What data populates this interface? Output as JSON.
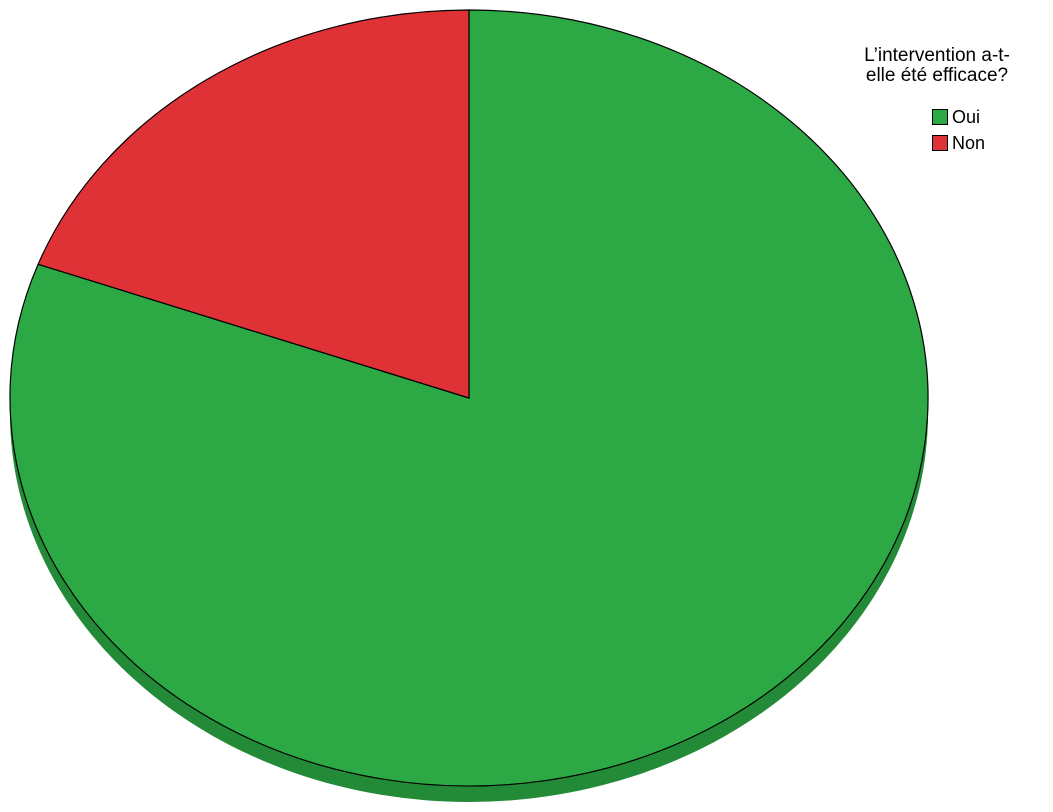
{
  "chart_data": {
    "type": "pie",
    "title": "",
    "legend_title": "L’intervention a-t-elle été efficace?",
    "legend_position": "top-right",
    "slices": [
      {
        "label": "Oui",
        "value": 80.6,
        "color": "#2ca944",
        "side_color": "#238a37"
      },
      {
        "label": "Non",
        "value": 19.4,
        "color": "#df3236",
        "side_color": "#b32a2d"
      }
    ]
  }
}
